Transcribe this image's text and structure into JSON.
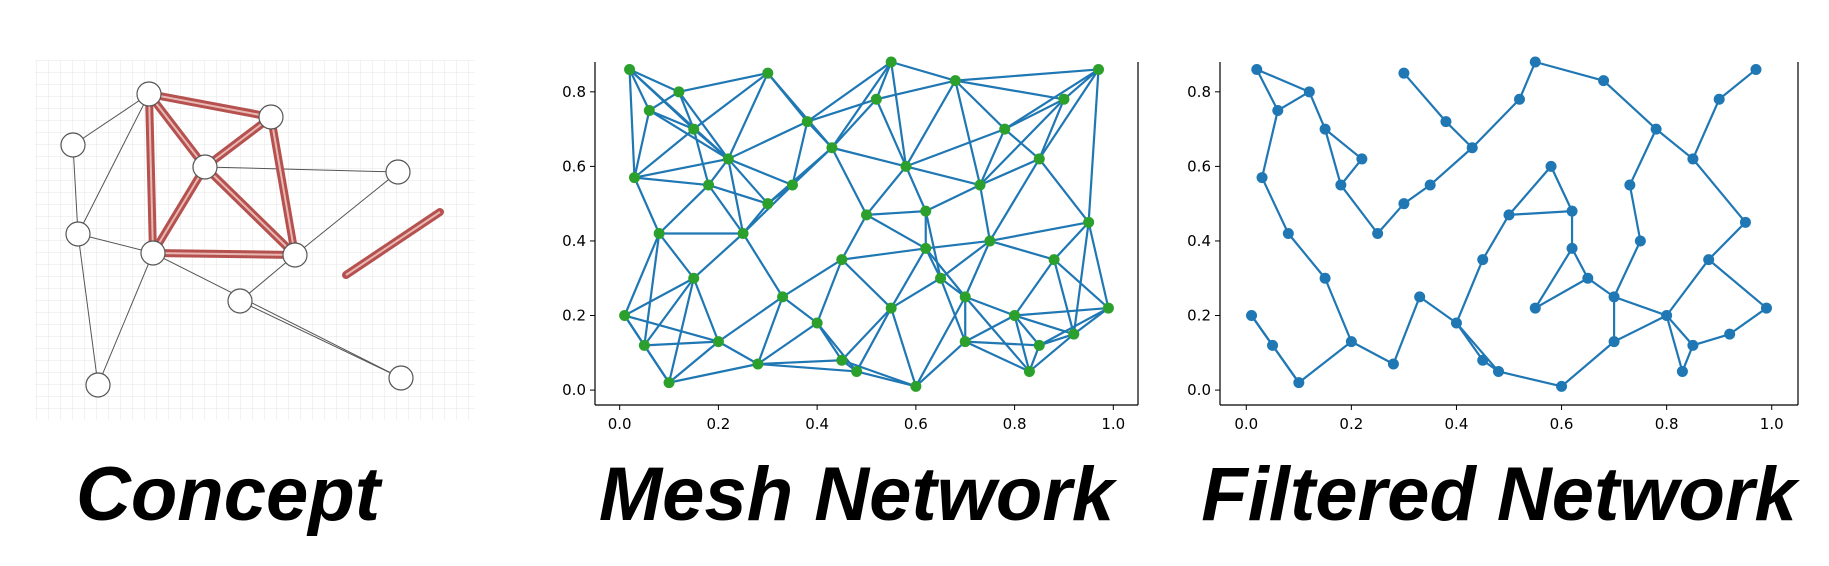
{
  "concept": {
    "title": "Concept"
  },
  "chart_data": [
    {
      "type": "scatter",
      "title": "Mesh Network",
      "color": "#2ca02c",
      "edge_color": "#1f77b4",
      "x": [
        0.01,
        0.02,
        0.03,
        0.05,
        0.06,
        0.08,
        0.1,
        0.12,
        0.15,
        0.18,
        0.2,
        0.22,
        0.25,
        0.28,
        0.3,
        0.33,
        0.35,
        0.38,
        0.4,
        0.43,
        0.45,
        0.48,
        0.5,
        0.52,
        0.55,
        0.58,
        0.6,
        0.62,
        0.65,
        0.68,
        0.7,
        0.73,
        0.75,
        0.78,
        0.8,
        0.83,
        0.85,
        0.88,
        0.9,
        0.92,
        0.95,
        0.97,
        0.99,
        0.15,
        0.45,
        0.62,
        0.3,
        0.7,
        0.85,
        0.55
      ],
      "y": [
        0.2,
        0.86,
        0.57,
        0.12,
        0.75,
        0.42,
        0.02,
        0.8,
        0.3,
        0.55,
        0.13,
        0.62,
        0.42,
        0.07,
        0.85,
        0.25,
        0.55,
        0.72,
        0.18,
        0.65,
        0.35,
        0.05,
        0.47,
        0.78,
        0.22,
        0.6,
        0.01,
        0.48,
        0.3,
        0.83,
        0.13,
        0.55,
        0.4,
        0.7,
        0.2,
        0.05,
        0.62,
        0.35,
        0.78,
        0.15,
        0.45,
        0.86,
        0.22,
        0.7,
        0.08,
        0.38,
        0.5,
        0.25,
        0.12,
        0.88
      ],
      "xlim": [
        -0.05,
        1.05
      ],
      "ylim": [
        -0.04,
        0.88
      ],
      "xticks": [
        {
          "value": 0,
          "label": "0.0"
        },
        0.2,
        0.4,
        0.6,
        0.8,
        {
          "value": 1,
          "label": "1.0"
        }
      ],
      "yticks": [
        {
          "value": 0,
          "label": "0.0"
        },
        0.2,
        0.4,
        0.6,
        0.8
      ]
    },
    {
      "type": "scatter",
      "title": "Filtered Network",
      "color": "#1f77b4",
      "edge_color": "#1f77b4",
      "x": [
        0.01,
        0.02,
        0.03,
        0.05,
        0.06,
        0.08,
        0.1,
        0.12,
        0.15,
        0.18,
        0.2,
        0.22,
        0.25,
        0.28,
        0.3,
        0.33,
        0.35,
        0.38,
        0.4,
        0.43,
        0.45,
        0.48,
        0.5,
        0.52,
        0.55,
        0.58,
        0.6,
        0.62,
        0.65,
        0.68,
        0.7,
        0.73,
        0.75,
        0.78,
        0.8,
        0.83,
        0.85,
        0.88,
        0.9,
        0.92,
        0.95,
        0.97,
        0.99,
        0.15,
        0.45,
        0.62,
        0.3,
        0.7,
        0.85,
        0.55
      ],
      "y": [
        0.2,
        0.86,
        0.57,
        0.12,
        0.75,
        0.42,
        0.02,
        0.8,
        0.3,
        0.55,
        0.13,
        0.62,
        0.42,
        0.07,
        0.85,
        0.25,
        0.55,
        0.72,
        0.18,
        0.65,
        0.35,
        0.05,
        0.47,
        0.78,
        0.22,
        0.6,
        0.01,
        0.48,
        0.3,
        0.83,
        0.13,
        0.55,
        0.4,
        0.7,
        0.2,
        0.05,
        0.62,
        0.35,
        0.78,
        0.15,
        0.45,
        0.86,
        0.22,
        0.7,
        0.08,
        0.38,
        0.5,
        0.25,
        0.12,
        0.88
      ],
      "xlim": [
        -0.05,
        1.05
      ],
      "ylim": [
        -0.04,
        0.88
      ],
      "xticks": [
        {
          "value": 0,
          "label": "0.0"
        },
        0.2,
        0.4,
        0.6,
        0.8,
        {
          "value": 1,
          "label": "1.0"
        }
      ],
      "yticks": [
        {
          "value": 0,
          "label": "0.0"
        },
        0.2,
        0.4,
        0.6,
        0.8
      ]
    }
  ]
}
